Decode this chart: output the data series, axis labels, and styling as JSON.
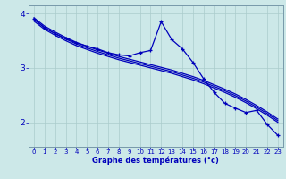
{
  "xlabel": "Graphe des températures (°c)",
  "bg_color": "#cce8e8",
  "line_color": "#0000bb",
  "grid_color": "#aacccc",
  "spine_color": "#7799aa",
  "xlim": [
    -0.5,
    23.5
  ],
  "ylim": [
    1.55,
    4.15
  ],
  "yticks": [
    2,
    3,
    4
  ],
  "xticks": [
    0,
    1,
    2,
    3,
    4,
    5,
    6,
    7,
    8,
    9,
    10,
    11,
    12,
    13,
    14,
    15,
    16,
    17,
    18,
    19,
    20,
    21,
    22,
    23
  ],
  "x": [
    0,
    1,
    2,
    3,
    4,
    5,
    6,
    7,
    8,
    9,
    10,
    11,
    12,
    13,
    14,
    15,
    16,
    17,
    18,
    19,
    20,
    21,
    22,
    23
  ],
  "line_straight1": [
    3.92,
    3.77,
    3.66,
    3.56,
    3.47,
    3.4,
    3.33,
    3.27,
    3.21,
    3.16,
    3.11,
    3.06,
    3.01,
    2.96,
    2.9,
    2.84,
    2.77,
    2.69,
    2.61,
    2.52,
    2.42,
    2.31,
    2.19,
    2.06
  ],
  "line_straight2": [
    3.89,
    3.74,
    3.63,
    3.53,
    3.44,
    3.37,
    3.3,
    3.24,
    3.18,
    3.13,
    3.08,
    3.03,
    2.98,
    2.93,
    2.87,
    2.81,
    2.74,
    2.66,
    2.58,
    2.49,
    2.39,
    2.28,
    2.16,
    2.03
  ],
  "line_straight3": [
    3.86,
    3.71,
    3.6,
    3.5,
    3.41,
    3.34,
    3.27,
    3.21,
    3.15,
    3.1,
    3.05,
    3.0,
    2.95,
    2.9,
    2.84,
    2.78,
    2.71,
    2.63,
    2.55,
    2.46,
    2.36,
    2.25,
    2.13,
    2.0
  ],
  "line_data_x": [
    0,
    1,
    2,
    3,
    4,
    5,
    6,
    7,
    8,
    9,
    10,
    11,
    12,
    13,
    14,
    15,
    16,
    17,
    18,
    19,
    20,
    21,
    22,
    23
  ],
  "line_data_y": [
    3.9,
    3.74,
    3.63,
    3.54,
    3.46,
    3.4,
    3.35,
    3.28,
    3.24,
    3.22,
    3.28,
    3.32,
    3.85,
    3.52,
    3.35,
    3.1,
    2.8,
    2.55,
    2.35,
    2.26,
    2.18,
    2.22,
    1.96,
    1.76
  ]
}
